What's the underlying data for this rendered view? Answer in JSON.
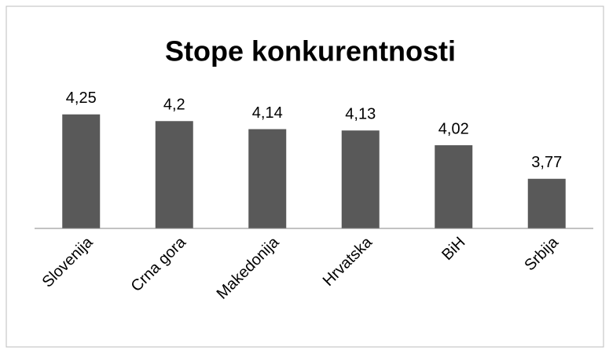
{
  "chart_data": {
    "type": "bar",
    "title": "Stope konkurentnosti",
    "categories": [
      "Slovenija",
      "Crna gora",
      "Makedonija",
      "Hrvatska",
      "BiH",
      "Srbija"
    ],
    "values": [
      4.25,
      4.2,
      4.14,
      4.13,
      4.02,
      3.77
    ],
    "value_labels": [
      "4,25",
      "4,2",
      "4,14",
      "4,13",
      "4,02",
      "3,77"
    ],
    "color": "#595959",
    "ylim": [
      3.4,
      4.5
    ]
  }
}
